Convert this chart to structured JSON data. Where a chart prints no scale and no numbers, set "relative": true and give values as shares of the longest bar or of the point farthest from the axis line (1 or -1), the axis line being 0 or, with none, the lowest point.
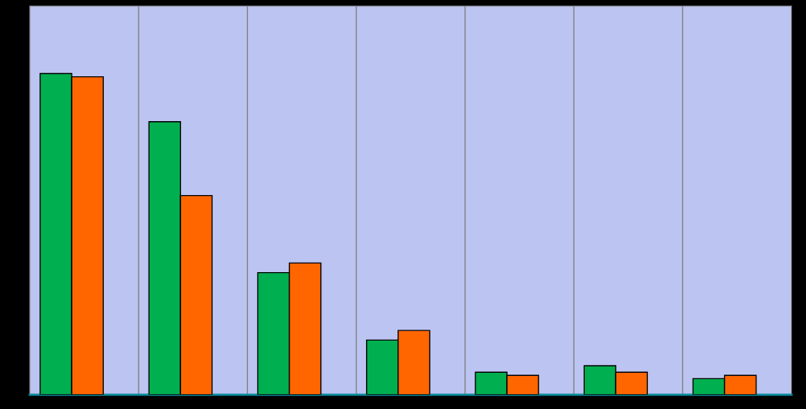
{
  "chart_data": {
    "type": "bar",
    "relative": true,
    "categories": [
      null,
      null,
      null,
      null,
      null,
      null,
      null
    ],
    "series": [
      {
        "color": "#00b050",
        "values": [
          1.0,
          0.85,
          0.38,
          0.17,
          0.07,
          0.09,
          0.05
        ]
      },
      {
        "color": "#ff6600",
        "values": [
          0.99,
          0.62,
          0.41,
          0.2,
          0.06,
          0.07,
          0.06
        ]
      }
    ],
    "grid": "x",
    "legend": false
  }
}
